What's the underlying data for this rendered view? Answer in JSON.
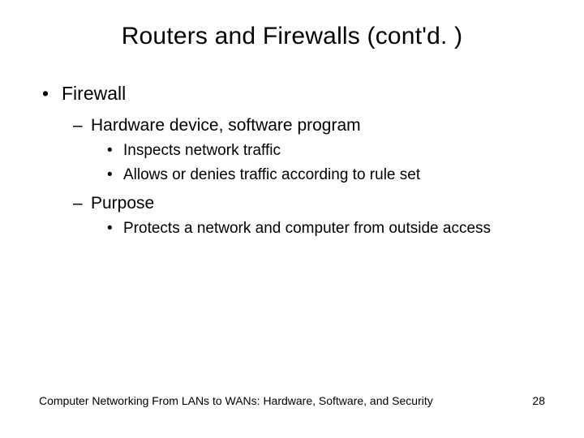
{
  "title": "Routers and Firewalls (cont'd. )",
  "bullets": {
    "l1_0": "Firewall",
    "l2_0": "Hardware device, software program",
    "l3_0": "Inspects network traffic",
    "l3_1": "Allows or denies traffic according to rule set",
    "l2_1": "Purpose",
    "l3_2": "Protects a network and computer from outside access"
  },
  "footer": {
    "text": "Computer Networking From LANs to WANs: Hardware, Software, and Security",
    "page": "28"
  },
  "style": {
    "background_color": "#ffffff",
    "text_color": "#000000",
    "title_fontsize": 30,
    "l1_fontsize": 23,
    "l2_fontsize": 21,
    "l3_fontsize": 19,
    "footer_fontsize": 14,
    "bullet_l1": "•",
    "bullet_l2": "–",
    "bullet_l3": "•"
  }
}
